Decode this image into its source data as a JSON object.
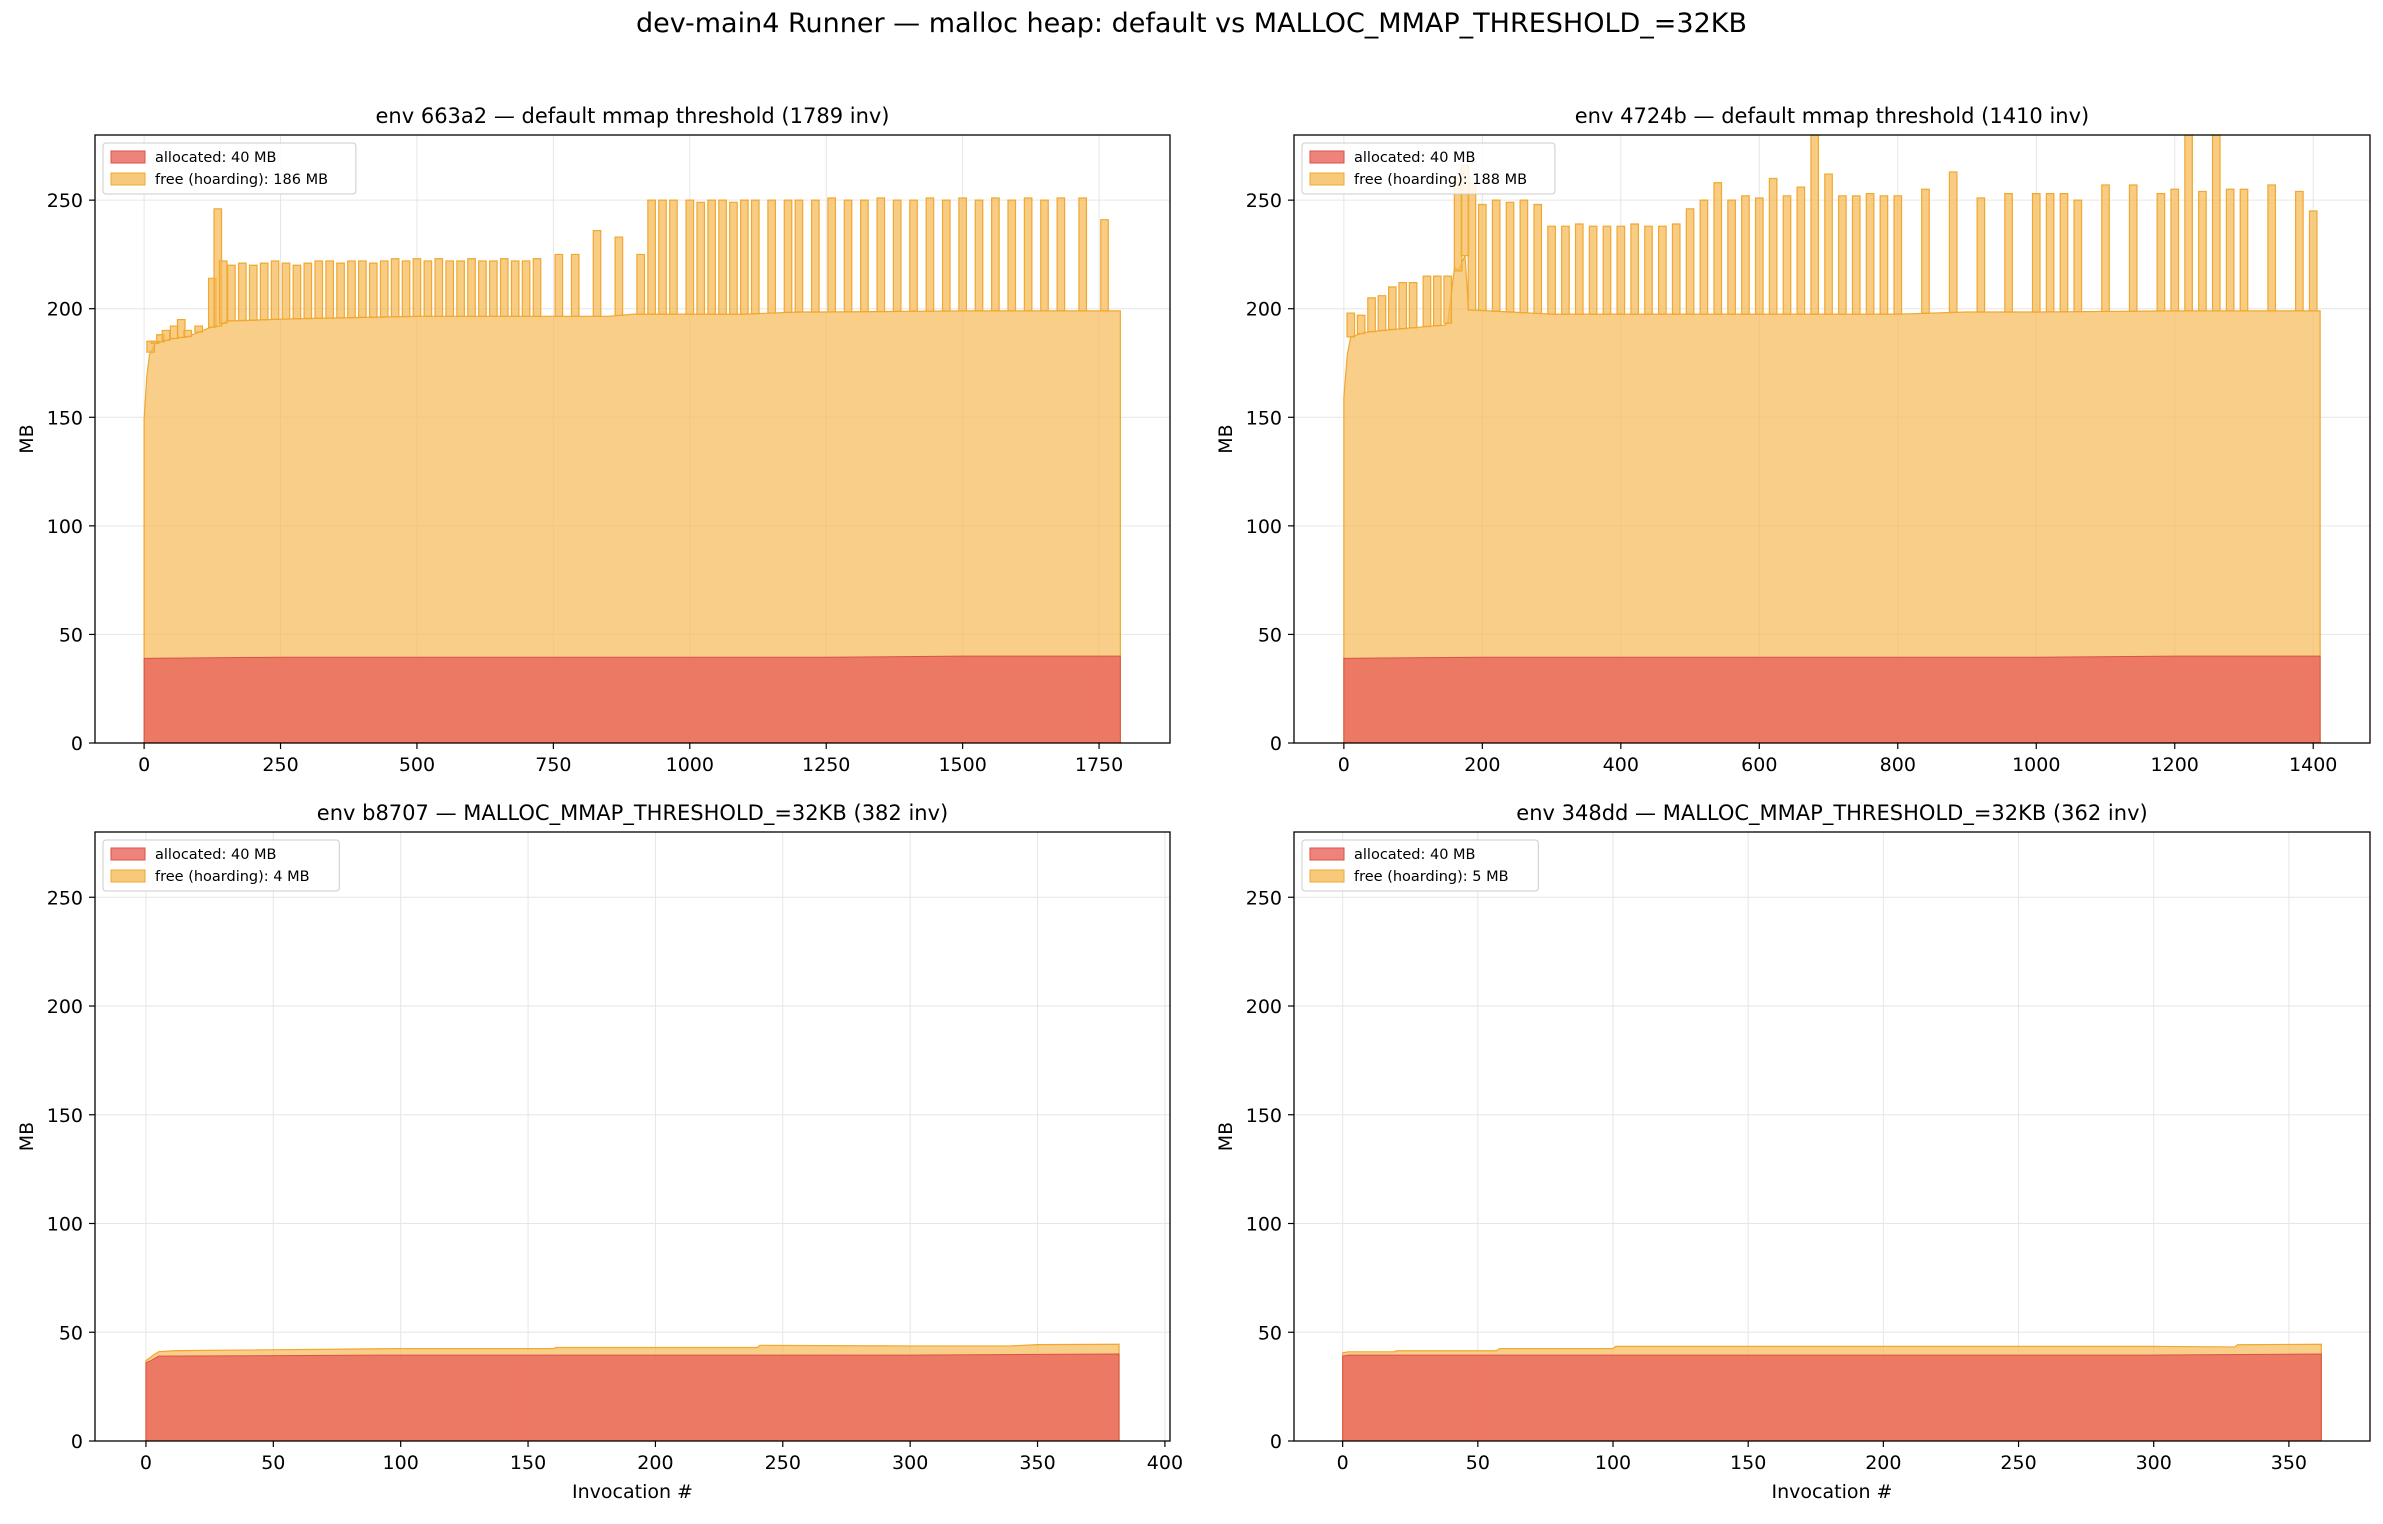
{
  "figure": {
    "title": "dev-main4 Runner — malloc heap: default vs MALLOC_MMAP_THRESHOLD_=32KB"
  },
  "colors": {
    "allocated": "#e8645a",
    "free": "#f5bb5a",
    "free_line": "#f0a830",
    "grid": "#e6e6e6"
  },
  "chart_data": [
    {
      "type": "area",
      "stacked": true,
      "title": "env 663a2 — default mmap threshold (1789 inv)",
      "xlabel": "",
      "ylabel": "MB",
      "xlim": [
        -90,
        1880
      ],
      "ylim": [
        0,
        280
      ],
      "xticks": [
        0,
        250,
        500,
        750,
        1000,
        1250,
        1500,
        1750
      ],
      "yticks": [
        0,
        50,
        100,
        150,
        200,
        250
      ],
      "grid": true,
      "legend_position": "top-left",
      "series": [
        {
          "name": "allocated: 40 MB",
          "kind": "allocated",
          "x": [
            0,
            250,
            500,
            750,
            1000,
            1250,
            1500,
            1789
          ],
          "values": [
            39,
            39.5,
            39.5,
            39.5,
            39.5,
            39.5,
            40,
            40
          ]
        },
        {
          "name": "free (hoarding): 186 MB",
          "kind": "free",
          "x": [
            0,
            5,
            10,
            20,
            50,
            80,
            100,
            120,
            140,
            150,
            300,
            500,
            600,
            699,
            700,
            760,
            850,
            899,
            900,
            1000,
            1100,
            1200,
            1300,
            1400,
            1500,
            1600,
            1700,
            1789
          ],
          "values": [
            110,
            130,
            140,
            145,
            147,
            148,
            150,
            152,
            153,
            155,
            156,
            157,
            157,
            157,
            157,
            157,
            157,
            158,
            158,
            158,
            158,
            159,
            159,
            159,
            159,
            159,
            159,
            159
          ],
          "spikes": [
            [
              12,
              185
            ],
            [
              20,
              185
            ],
            [
              30,
              188
            ],
            [
              40,
              190
            ],
            [
              55,
              192
            ],
            [
              68,
              195
            ],
            [
              80,
              190
            ],
            [
              100,
              192
            ],
            [
              125,
              214
            ],
            [
              135,
              246
            ],
            [
              145,
              222
            ],
            [
              160,
              220
            ],
            [
              180,
              221
            ],
            [
              200,
              220
            ],
            [
              220,
              221
            ],
            [
              240,
              222
            ],
            [
              260,
              221
            ],
            [
              280,
              220
            ],
            [
              300,
              221
            ],
            [
              320,
              222
            ],
            [
              340,
              222
            ],
            [
              360,
              221
            ],
            [
              380,
              222
            ],
            [
              400,
              222
            ],
            [
              420,
              221
            ],
            [
              440,
              222
            ],
            [
              460,
              223
            ],
            [
              480,
              222
            ],
            [
              500,
              223
            ],
            [
              520,
              222
            ],
            [
              540,
              223
            ],
            [
              560,
              222
            ],
            [
              580,
              222
            ],
            [
              600,
              223
            ],
            [
              620,
              222
            ],
            [
              640,
              222
            ],
            [
              660,
              223
            ],
            [
              680,
              222
            ],
            [
              700,
              222
            ],
            [
              720,
              223
            ],
            [
              760,
              225
            ],
            [
              790,
              225
            ],
            [
              830,
              236
            ],
            [
              870,
              233
            ],
            [
              910,
              225
            ],
            [
              930,
              250
            ],
            [
              950,
              250
            ],
            [
              970,
              250
            ],
            [
              1000,
              250
            ],
            [
              1020,
              249
            ],
            [
              1040,
              250
            ],
            [
              1060,
              250
            ],
            [
              1080,
              249
            ],
            [
              1100,
              250
            ],
            [
              1120,
              250
            ],
            [
              1150,
              250
            ],
            [
              1180,
              250
            ],
            [
              1200,
              250
            ],
            [
              1230,
              250
            ],
            [
              1260,
              251
            ],
            [
              1290,
              250
            ],
            [
              1320,
              250
            ],
            [
              1350,
              251
            ],
            [
              1380,
              250
            ],
            [
              1410,
              250
            ],
            [
              1440,
              251
            ],
            [
              1470,
              250
            ],
            [
              1500,
              251
            ],
            [
              1530,
              250
            ],
            [
              1560,
              251
            ],
            [
              1590,
              250
            ],
            [
              1620,
              251
            ],
            [
              1650,
              250
            ],
            [
              1680,
              251
            ],
            [
              1720,
              251
            ],
            [
              1760,
              241
            ]
          ]
        }
      ]
    },
    {
      "type": "area",
      "stacked": true,
      "title": "env 4724b — default mmap threshold (1410 inv)",
      "xlabel": "",
      "ylabel": "MB",
      "xlim": [
        -72,
        1482
      ],
      "ylim": [
        0,
        280
      ],
      "xticks": [
        0,
        200,
        400,
        600,
        800,
        1000,
        1200,
        1400
      ],
      "yticks": [
        0,
        50,
        100,
        150,
        200,
        250
      ],
      "grid": true,
      "legend_position": "top-left",
      "series": [
        {
          "name": "allocated: 40 MB",
          "kind": "allocated",
          "x": [
            0,
            200,
            400,
            600,
            800,
            1000,
            1200,
            1410
          ],
          "values": [
            39,
            39.5,
            39.5,
            39.5,
            39.5,
            39.5,
            40,
            40
          ]
        },
        {
          "name": "free (hoarding): 188 MB",
          "kind": "free",
          "x": [
            0,
            5,
            10,
            30,
            60,
            100,
            140,
            145,
            150,
            160,
            165,
            175,
            180,
            300,
            400,
            500,
            600,
            700,
            800,
            900,
            1000,
            1100,
            1200,
            1300,
            1410
          ],
          "values": [
            120,
            140,
            148,
            150,
            151,
            152,
            153,
            153,
            154,
            180,
            178,
            185,
            160,
            158,
            158,
            158,
            158,
            158,
            158,
            159,
            159,
            159,
            159,
            159,
            159
          ],
          "spikes": [
            [
              10,
              198
            ],
            [
              25,
              197
            ],
            [
              40,
              205
            ],
            [
              55,
              206
            ],
            [
              70,
              210
            ],
            [
              85,
              212
            ],
            [
              100,
              212
            ],
            [
              120,
              215
            ],
            [
              135,
              215
            ],
            [
              150,
              215
            ],
            [
              165,
              260
            ],
            [
              175,
              266
            ],
            [
              185,
              258
            ],
            [
              200,
              248
            ],
            [
              220,
              250
            ],
            [
              240,
              249
            ],
            [
              260,
              250
            ],
            [
              280,
              248
            ],
            [
              300,
              238
            ],
            [
              320,
              238
            ],
            [
              340,
              239
            ],
            [
              360,
              238
            ],
            [
              380,
              238
            ],
            [
              400,
              238
            ],
            [
              420,
              239
            ],
            [
              440,
              238
            ],
            [
              460,
              238
            ],
            [
              480,
              239
            ],
            [
              500,
              246
            ],
            [
              520,
              250
            ],
            [
              540,
              258
            ],
            [
              560,
              250
            ],
            [
              580,
              252
            ],
            [
              600,
              251
            ],
            [
              620,
              260
            ],
            [
              640,
              252
            ],
            [
              660,
              256
            ],
            [
              680,
              281
            ],
            [
              700,
              262
            ],
            [
              720,
              252
            ],
            [
              740,
              252
            ],
            [
              760,
              253
            ],
            [
              780,
              252
            ],
            [
              800,
              252
            ],
            [
              840,
              255
            ],
            [
              880,
              263
            ],
            [
              920,
              251
            ],
            [
              960,
              253
            ],
            [
              1000,
              253
            ],
            [
              1020,
              253
            ],
            [
              1040,
              253
            ],
            [
              1060,
              250
            ],
            [
              1100,
              257
            ],
            [
              1140,
              257
            ],
            [
              1180,
              253
            ],
            [
              1200,
              255
            ],
            [
              1220,
              281
            ],
            [
              1240,
              254
            ],
            [
              1260,
              281
            ],
            [
              1280,
              255
            ],
            [
              1300,
              255
            ],
            [
              1340,
              257
            ],
            [
              1380,
              254
            ],
            [
              1400,
              245
            ]
          ]
        }
      ]
    },
    {
      "type": "area",
      "stacked": true,
      "title": "env b8707 — MALLOC_MMAP_THRESHOLD_=32KB (382 inv)",
      "xlabel": "Invocation #",
      "ylabel": "MB",
      "xlim": [
        -20,
        402
      ],
      "ylim": [
        0,
        280
      ],
      "xticks": [
        0,
        50,
        100,
        150,
        200,
        250,
        300,
        350,
        400
      ],
      "yticks": [
        0,
        50,
        100,
        150,
        200,
        250
      ],
      "grid": true,
      "legend_position": "top-left",
      "series": [
        {
          "name": "allocated: 40 MB",
          "kind": "allocated",
          "x": [
            0,
            2,
            5,
            100,
            200,
            300,
            382
          ],
          "values": [
            36,
            37,
            39,
            39.5,
            39.5,
            39.5,
            40
          ]
        },
        {
          "name": "free (hoarding): 4 MB",
          "kind": "free",
          "x": [
            0,
            3,
            4,
            12,
            13,
            100,
            160,
            161,
            240,
            241,
            340,
            350,
            382
          ],
          "values": [
            1,
            2,
            2,
            2.5,
            2.5,
            3,
            3,
            3.5,
            3.5,
            4.5,
            4,
            4.5,
            4.5
          ]
        }
      ]
    },
    {
      "type": "area",
      "stacked": true,
      "title": "env 348dd — MALLOC_MMAP_THRESHOLD_=32KB (362 inv)",
      "xlabel": "Invocation #",
      "ylabel": "MB",
      "xlim": [
        -18,
        380
      ],
      "ylim": [
        0,
        280
      ],
      "xticks": [
        0,
        50,
        100,
        150,
        200,
        250,
        300,
        350
      ],
      "yticks": [
        0,
        50,
        100,
        150,
        200,
        250
      ],
      "grid": true,
      "legend_position": "top-left",
      "series": [
        {
          "name": "allocated: 40 MB",
          "kind": "allocated",
          "x": [
            0,
            2,
            100,
            200,
            300,
            362
          ],
          "values": [
            39,
            39.5,
            39.5,
            39.5,
            39.5,
            40
          ]
        },
        {
          "name": "free (hoarding): 5 MB",
          "kind": "free",
          "x": [
            0,
            19,
            20,
            57,
            58,
            100,
            101,
            300,
            330,
            331,
            362
          ],
          "values": [
            1.5,
            1.5,
            2,
            2,
            3,
            3,
            4,
            4,
            3.5,
            4.5,
            4.5
          ]
        }
      ]
    }
  ]
}
